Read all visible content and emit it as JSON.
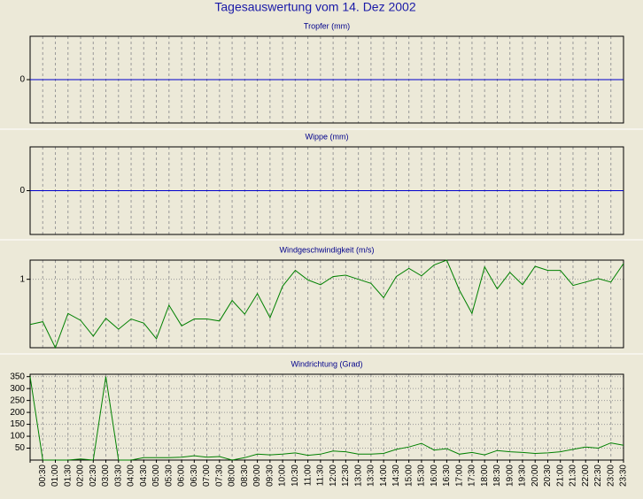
{
  "title": "Tagesauswertung vom 14. Dez 2002",
  "chart_data": [
    {
      "type": "line",
      "title": "Tropfer (mm)",
      "color": "#0000cc",
      "grid": true,
      "ylim": [
        -1,
        1
      ],
      "yticks": [
        0
      ],
      "values": [
        0,
        0,
        0,
        0,
        0,
        0,
        0,
        0,
        0,
        0,
        0,
        0,
        0,
        0,
        0,
        0,
        0,
        0,
        0,
        0,
        0,
        0,
        0,
        0,
        0,
        0,
        0,
        0,
        0,
        0,
        0,
        0,
        0,
        0,
        0,
        0,
        0,
        0,
        0,
        0,
        0,
        0,
        0,
        0,
        0,
        0,
        0,
        0
      ]
    },
    {
      "type": "line",
      "title": "Wippe (mm)",
      "color": "#0000cc",
      "grid": true,
      "ylim": [
        -1,
        1
      ],
      "yticks": [
        0
      ],
      "values": [
        0,
        0,
        0,
        0,
        0,
        0,
        0,
        0,
        0,
        0,
        0,
        0,
        0,
        0,
        0,
        0,
        0,
        0,
        0,
        0,
        0,
        0,
        0,
        0,
        0,
        0,
        0,
        0,
        0,
        0,
        0,
        0,
        0,
        0,
        0,
        0,
        0,
        0,
        0,
        0,
        0,
        0,
        0,
        0,
        0,
        0,
        0,
        0
      ]
    },
    {
      "type": "line",
      "title": "Windgeschwindigkeit (m/s)",
      "color": "#008000",
      "grid": true,
      "ylim": [
        0,
        1.28
      ],
      "yticks": [
        1
      ],
      "values": [
        0.34,
        0.38,
        0.0,
        0.5,
        0.4,
        0.17,
        0.43,
        0.27,
        0.42,
        0.36,
        0.13,
        0.62,
        0.32,
        0.42,
        0.42,
        0.39,
        0.69,
        0.49,
        0.79,
        0.44,
        0.9,
        1.13,
        0.99,
        0.92,
        1.04,
        1.06,
        1.0,
        0.94,
        0.73,
        1.04,
        1.16,
        1.05,
        1.21,
        1.28,
        0.84,
        0.5,
        1.18,
        0.86,
        1.1,
        0.92,
        1.19,
        1.13,
        1.13,
        0.91,
        0.96,
        1.01,
        0.96,
        1.23
      ]
    },
    {
      "type": "line",
      "title": "Windrichtung (Grad)",
      "color": "#008000",
      "grid": true,
      "ylim": [
        0,
        360
      ],
      "yticks": [
        50,
        100,
        150,
        200,
        250,
        300,
        350
      ],
      "categories": [
        null,
        "00:30",
        "01:00",
        "01:30",
        "02:00",
        "02:30",
        "03:00",
        "03:30",
        "04:00",
        "04:30",
        "05:00",
        "05:30",
        "06:00",
        "06:30",
        "07:00",
        "07:30",
        "08:00",
        "08:30",
        "09:00",
        "09:30",
        "10:00",
        "10:30",
        "11:00",
        "11:30",
        "12:00",
        "12:30",
        "13:00",
        "13:30",
        "14:00",
        "14:30",
        "15:00",
        "15:30",
        "16:00",
        "16:30",
        "17:00",
        "17:30",
        "18:00",
        "18:30",
        "19:00",
        "19:30",
        "20:00",
        "20:30",
        "21:00",
        "21:30",
        "22:00",
        "22:30",
        "23:00",
        "23:30"
      ],
      "values": [
        350,
        0,
        0,
        0,
        5,
        0,
        350,
        0,
        0,
        10,
        10,
        10,
        12,
        18,
        12,
        15,
        0,
        10,
        25,
        22,
        25,
        30,
        20,
        25,
        38,
        35,
        25,
        25,
        28,
        45,
        55,
        70,
        42,
        48,
        25,
        32,
        22,
        40,
        35,
        32,
        28,
        30,
        35,
        45,
        55,
        50,
        72,
        62
      ]
    }
  ]
}
